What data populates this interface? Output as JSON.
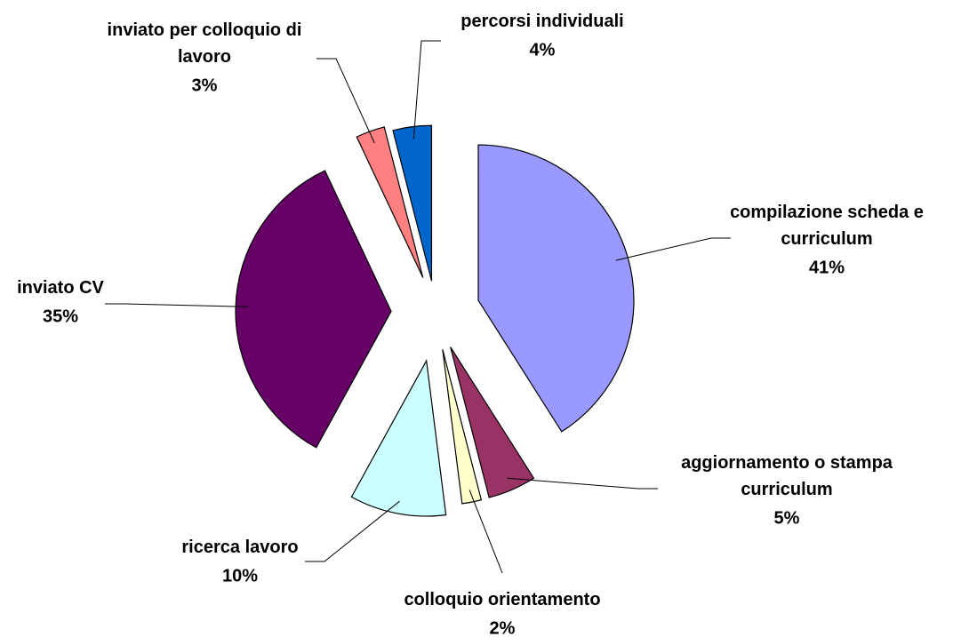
{
  "chart_data": {
    "type": "pie",
    "categories": [
      "compilazione scheda e curriculum",
      "aggiornamento o stampa curriculum",
      "colloquio orientamento",
      "ricerca lavoro",
      "inviato CV",
      "inviato per colloquio di lavoro",
      "percorsi individuali"
    ],
    "values": [
      41,
      5,
      2,
      10,
      35,
      3,
      4
    ],
    "value_labels": [
      "41%",
      "5%",
      "2%",
      "10%",
      "35%",
      "3%",
      "4%"
    ],
    "colors": [
      "#9999ff",
      "#993366",
      "#ffffcc",
      "#ccffff",
      "#660066",
      "#ff8080",
      "#0066cc"
    ]
  }
}
